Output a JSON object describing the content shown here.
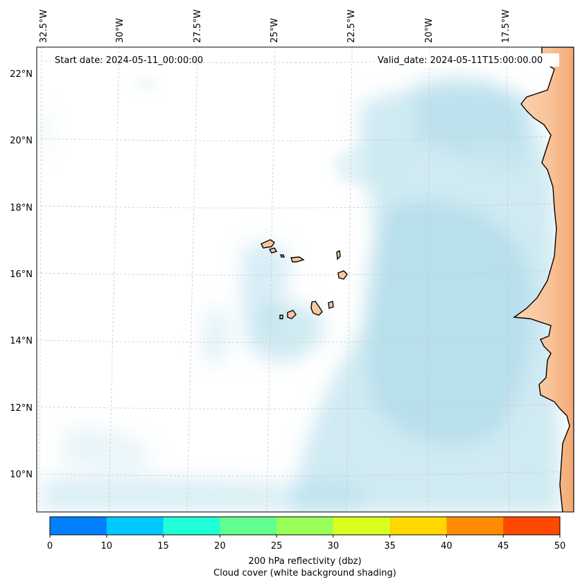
{
  "map": {
    "start_date_label": "Start date: 2024-05-11_00:00:00",
    "valid_date_label": "Valid_date: 2024-05-11T15:00:00.00",
    "lon_labels": [
      "32.5°W",
      "30°W",
      "27.5°W",
      "25°W",
      "22.5°W",
      "20°W",
      "17.5°W"
    ],
    "lat_labels": [
      "22°N",
      "20°N",
      "18°N",
      "16°N",
      "14°N",
      "12°N",
      "10°N"
    ],
    "gridlines": true
  },
  "colorbar": {
    "ticks": [
      "0",
      "10",
      "15",
      "20",
      "25",
      "30",
      "35",
      "40",
      "45",
      "50"
    ],
    "colors": [
      "#0080ff",
      "#00c8ff",
      "#20ffd8",
      "#60ff90",
      "#98ff58",
      "#d8ff20",
      "#ffd800",
      "#ff8c00",
      "#ff4800"
    ],
    "label_line1": "200 hPa reflectivity (dbz)",
    "label_line2": "Cloud cover (white background shading)"
  },
  "colors": {
    "land": "#f8c8a0",
    "cloud": "#a8d8e8",
    "coastline": "#000000"
  }
}
